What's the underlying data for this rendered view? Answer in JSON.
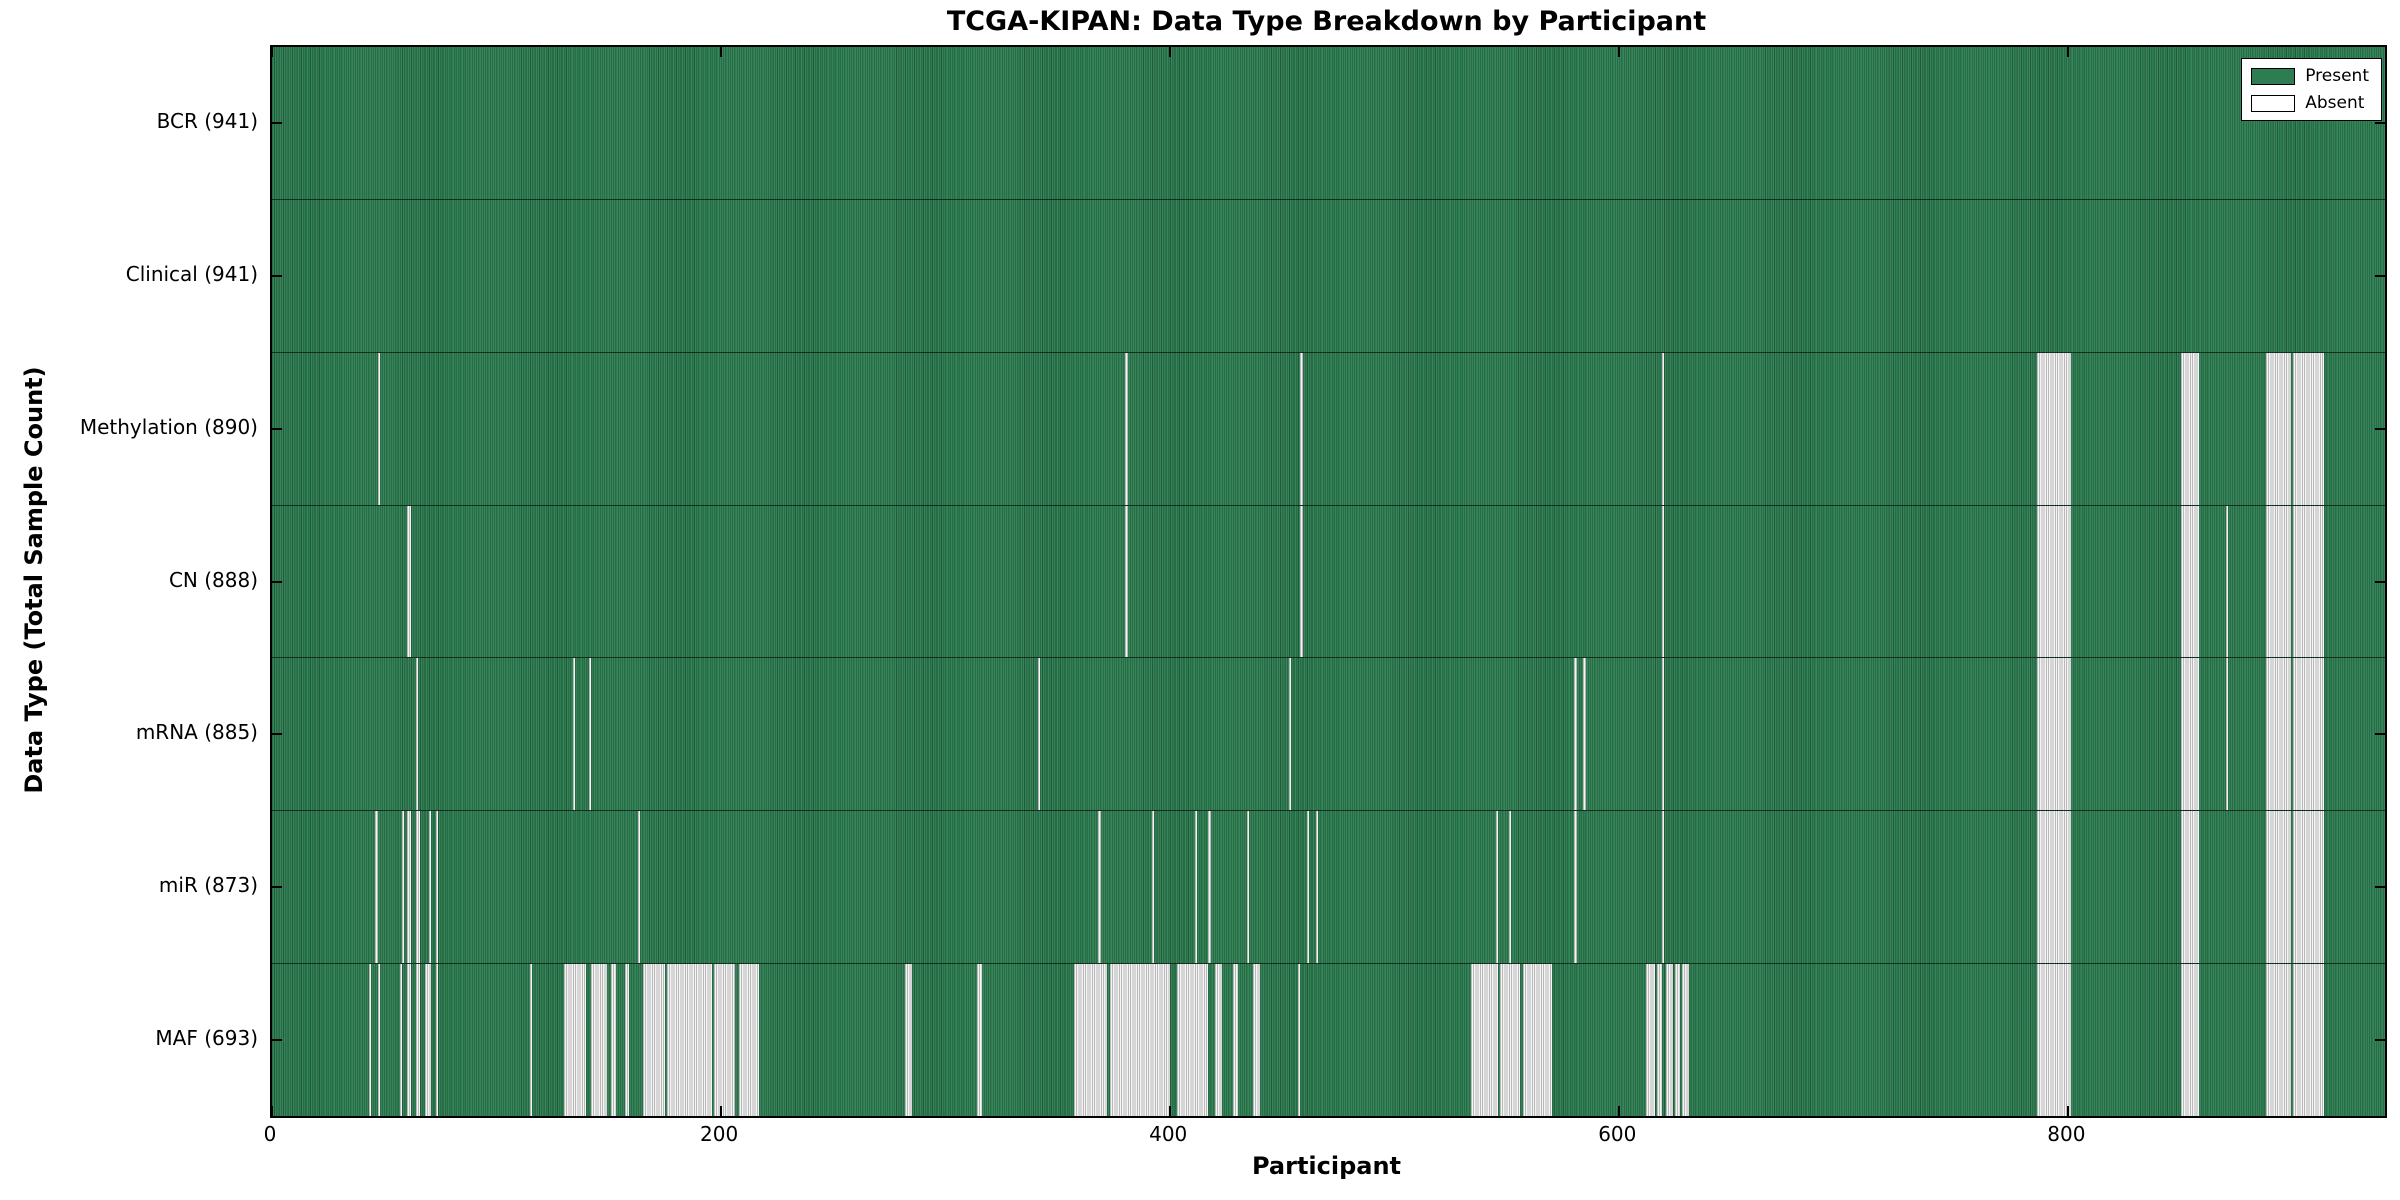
{
  "title": "TCGA-KIPAN: Data Type Breakdown by Participant",
  "chart_data": {
    "type": "heatmap",
    "title": "TCGA-KIPAN: Data Type Breakdown by Participant",
    "xlabel": "Participant",
    "ylabel": "Data Type (Total Sample Count)",
    "x_range": [
      0,
      941
    ],
    "x_ticks": [
      0,
      200,
      400,
      600,
      800
    ],
    "grid": false,
    "legend_position": "upper right",
    "legend": [
      {
        "label": "Present",
        "value": "present"
      },
      {
        "label": "Absent",
        "value": "absent"
      }
    ],
    "colors": {
      "present": "#2e7d52",
      "present_edge_dark": "rgba(0,0,0,0.28)",
      "present_edge_light": "rgba(255,255,255,0.10)",
      "absent": "#ffffff",
      "absent_edge": "#b8b8b8",
      "row_separator": "rgba(0,0,0,0.60)",
      "spine": "#000000"
    },
    "n_participants": 941,
    "rows": [
      {
        "name": "BCR",
        "label": "BCR (941)",
        "total": 941,
        "absent_ranges": []
      },
      {
        "name": "Clinical",
        "label": "Clinical (941)",
        "total": 941,
        "absent_ranges": []
      },
      {
        "name": "Methylation",
        "label": "Methylation (890)",
        "total": 890,
        "absent_ranges": [
          [
            47,
            48
          ],
          [
            380,
            381
          ],
          [
            458,
            459
          ],
          [
            619,
            620
          ],
          [
            786,
            801
          ],
          [
            850,
            858
          ],
          [
            888,
            899
          ],
          [
            900,
            914
          ]
        ]
      },
      {
        "name": "CN",
        "label": "CN (888)",
        "total": 888,
        "absent_ranges": [
          [
            60,
            62
          ],
          [
            380,
            381
          ],
          [
            458,
            459
          ],
          [
            619,
            620
          ],
          [
            786,
            801
          ],
          [
            850,
            858
          ],
          [
            870,
            871
          ],
          [
            888,
            899
          ],
          [
            900,
            914
          ]
        ]
      },
      {
        "name": "mRNA",
        "label": "mRNA (885)",
        "total": 885,
        "absent_ranges": [
          [
            64,
            65
          ],
          [
            134,
            135
          ],
          [
            141,
            142
          ],
          [
            341,
            342
          ],
          [
            453,
            454
          ],
          [
            580,
            581
          ],
          [
            584,
            585
          ],
          [
            619,
            620
          ],
          [
            786,
            801
          ],
          [
            850,
            858
          ],
          [
            870,
            871
          ],
          [
            888,
            899
          ],
          [
            900,
            914
          ]
        ]
      },
      {
        "name": "miR",
        "label": "miR (873)",
        "total": 873,
        "absent_ranges": [
          [
            46,
            47
          ],
          [
            58,
            59
          ],
          [
            60,
            62
          ],
          [
            64,
            66
          ],
          [
            70,
            71
          ],
          [
            73,
            74
          ],
          [
            163,
            164
          ],
          [
            368,
            369
          ],
          [
            392,
            393
          ],
          [
            411,
            412
          ],
          [
            417,
            418
          ],
          [
            434,
            435
          ],
          [
            461,
            462
          ],
          [
            465,
            466
          ],
          [
            545,
            546
          ],
          [
            551,
            552
          ],
          [
            580,
            581
          ],
          [
            619,
            620
          ],
          [
            786,
            801
          ],
          [
            850,
            858
          ],
          [
            888,
            899
          ],
          [
            900,
            914
          ]
        ]
      },
      {
        "name": "MAF",
        "label": "MAF (693)",
        "total": 693,
        "absent_ranges": [
          [
            43,
            44
          ],
          [
            47,
            48
          ],
          [
            57,
            58
          ],
          [
            60,
            62
          ],
          [
            64,
            66
          ],
          [
            68,
            71
          ],
          [
            73,
            74
          ],
          [
            115,
            116
          ],
          [
            130,
            140
          ],
          [
            142,
            149
          ],
          [
            151,
            153
          ],
          [
            157,
            159
          ],
          [
            165,
            175
          ],
          [
            176,
            196
          ],
          [
            197,
            206
          ],
          [
            208,
            217
          ],
          [
            282,
            285
          ],
          [
            314,
            316
          ],
          [
            357,
            372
          ],
          [
            373,
            400
          ],
          [
            403,
            417
          ],
          [
            420,
            423
          ],
          [
            428,
            430
          ],
          [
            437,
            440
          ],
          [
            457,
            458
          ],
          [
            534,
            546
          ],
          [
            547,
            556
          ],
          [
            557,
            570
          ],
          [
            612,
            616
          ],
          [
            617,
            619
          ],
          [
            621,
            624
          ],
          [
            625,
            627
          ],
          [
            628,
            631
          ],
          [
            786,
            801
          ],
          [
            850,
            858
          ],
          [
            888,
            899
          ],
          [
            900,
            914
          ]
        ]
      }
    ]
  }
}
